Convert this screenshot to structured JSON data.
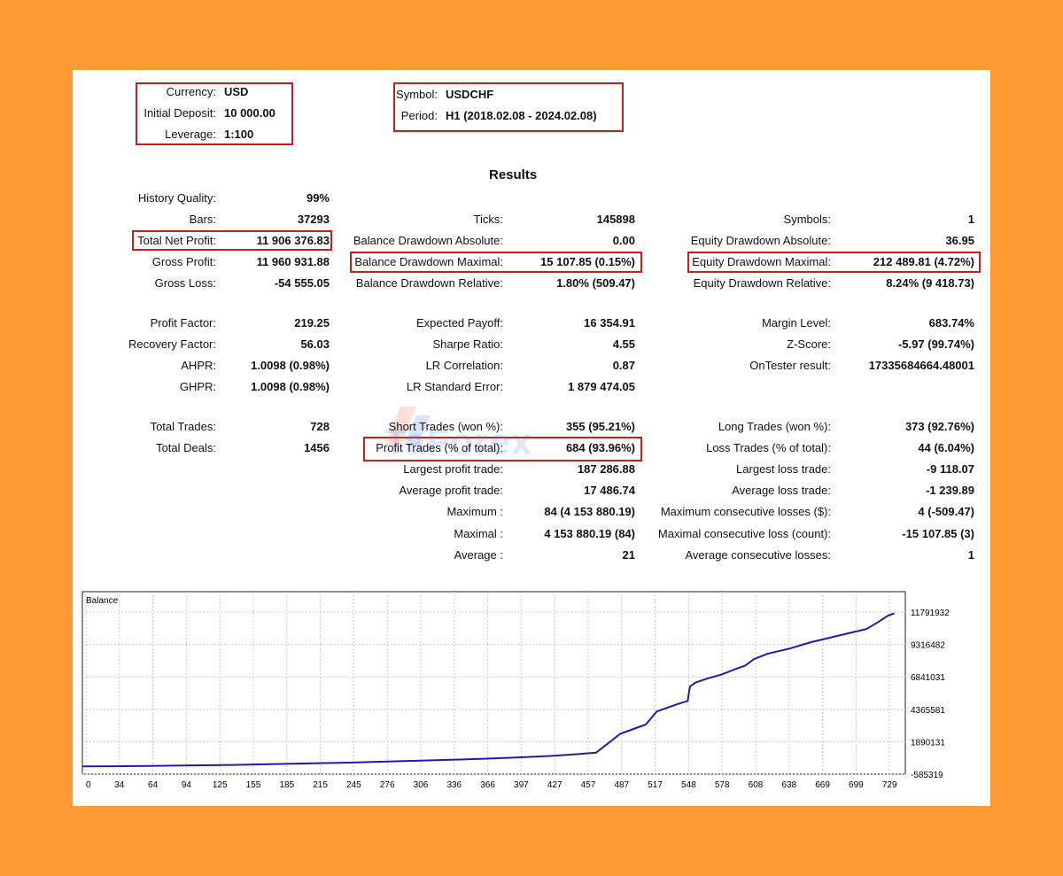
{
  "header": {
    "left": [
      {
        "label": "Currency:",
        "value": "USD"
      },
      {
        "label": "Initial Deposit:",
        "value": "10 000.00"
      },
      {
        "label": "Leverage:",
        "value": "1:100"
      }
    ],
    "right": [
      {
        "label": "Symbol:",
        "value": "USDCHF"
      },
      {
        "label": "Period:",
        "value": "H1 (2018.02.08 - 2024.02.08)"
      }
    ]
  },
  "results_title": "Results",
  "col1": [
    {
      "label": "History Quality:",
      "value": "99%"
    },
    {
      "label": "Bars:",
      "value": "37293"
    },
    {
      "label": "Total Net Profit:",
      "value": "11 906 376.83"
    },
    {
      "label": "Gross Profit:",
      "value": "11 960 931.88"
    },
    {
      "label": "Gross Loss:",
      "value": "-54 555.05"
    },
    {
      "label": "Profit Factor:",
      "value": "219.25"
    },
    {
      "label": "Recovery Factor:",
      "value": "56.03"
    },
    {
      "label": "AHPR:",
      "value": "1.0098 (0.98%)"
    },
    {
      "label": "GHPR:",
      "value": "1.0098 (0.98%)"
    },
    {
      "label": "Total Trades:",
      "value": "728"
    },
    {
      "label": "Total Deals:",
      "value": "1456"
    }
  ],
  "col2": [
    {
      "label": "Ticks:",
      "value": "145898"
    },
    {
      "label": "Balance Drawdown Absolute:",
      "value": "0.00"
    },
    {
      "label": "Balance Drawdown Maximal:",
      "value": "15 107.85 (0.15%)"
    },
    {
      "label": "Balance Drawdown Relative:",
      "value": "1.80% (509.47)"
    },
    {
      "label": "Expected Payoff:",
      "value": "16 354.91"
    },
    {
      "label": "Sharpe Ratio:",
      "value": "4.55"
    },
    {
      "label": "LR Correlation:",
      "value": "0.87"
    },
    {
      "label": "LR Standard Error:",
      "value": "1 879 474.05"
    },
    {
      "label": "Short Trades (won %):",
      "value": "355 (95.21%)"
    },
    {
      "label": "Profit Trades (% of total):",
      "value": "684 (93.96%)"
    },
    {
      "label": "Largest profit trade:",
      "value": "187 286.88"
    },
    {
      "label": "Average profit trade:",
      "value": "17 486.74"
    },
    {
      "label": "Maximum :",
      "value": "84 (4 153 880.19)"
    },
    {
      "label": "Maximal :",
      "value": "4 153 880.19 (84)"
    },
    {
      "label": "Average :",
      "value": "21"
    }
  ],
  "col3": [
    {
      "label": "Symbols:",
      "value": "1"
    },
    {
      "label": "Equity Drawdown Absolute:",
      "value": "36.95"
    },
    {
      "label": "Equity Drawdown Maximal:",
      "value": "212 489.81 (4.72%)"
    },
    {
      "label": "Equity Drawdown Relative:",
      "value": "8.24% (9 418.73)"
    },
    {
      "label": "Margin Level:",
      "value": "683.74%"
    },
    {
      "label": "Z-Score:",
      "value": "-5.97 (99.74%)"
    },
    {
      "label": "OnTester result:",
      "value": "17335684664.48001"
    },
    {
      "label": "Long Trades (won %):",
      "value": "373 (92.76%)"
    },
    {
      "label": "Loss Trades (% of total):",
      "value": "44 (6.04%)"
    },
    {
      "label": "Largest loss trade:",
      "value": "-9 118.07"
    },
    {
      "label": "Average loss trade:",
      "value": "-1 239.89"
    },
    {
      "label": "Maximum consecutive losses ($):",
      "value": "4 (-509.47)"
    },
    {
      "label": "Maximal consecutive loss (count):",
      "value": "-15 107.85 (3)"
    },
    {
      "label": "Average consecutive losses:",
      "value": "1"
    }
  ],
  "watermark": "TaForex",
  "colors": {
    "background": "#fd9a33",
    "highlight": "#d11a1a",
    "balance_line": "#1c1ca8"
  },
  "chart_data": {
    "type": "line",
    "title": "Balance",
    "x_ticks": [
      "0",
      "34",
      "64",
      "94",
      "125",
      "155",
      "185",
      "215",
      "245",
      "276",
      "306",
      "336",
      "366",
      "397",
      "427",
      "457",
      "487",
      "517",
      "548",
      "578",
      "608",
      "638",
      "669",
      "699",
      "729"
    ],
    "y_ticks": [
      "11791932",
      "9316482",
      "6841031",
      "4365581",
      "1890131",
      "-585319"
    ],
    "xlim": [
      0,
      745
    ],
    "ylim": [
      -585319,
      11791932
    ],
    "grid": true,
    "series": [
      {
        "name": "Balance",
        "x": [
          0,
          30,
          60,
          90,
          120,
          155,
          185,
          215,
          245,
          276,
          306,
          336,
          366,
          397,
          427,
          450,
          465,
          475,
          487,
          500,
          510,
          520,
          530,
          540,
          548,
          550,
          555,
          565,
          578,
          590,
          600,
          608,
          620,
          630,
          640,
          660,
          675,
          690,
          710,
          720,
          729,
          735
        ],
        "y": [
          10000,
          20000,
          40000,
          70000,
          100000,
          150000,
          200000,
          250000,
          300000,
          380000,
          450000,
          520000,
          600000,
          700000,
          820000,
          950000,
          1050000,
          1700000,
          2500000,
          2900000,
          3200000,
          4200000,
          4500000,
          4800000,
          5000000,
          6100000,
          6400000,
          6700000,
          7000000,
          7400000,
          7700000,
          8200000,
          8600000,
          8800000,
          9000000,
          9500000,
          9800000,
          10100000,
          10500000,
          11000000,
          11500000,
          11700000
        ]
      }
    ]
  }
}
